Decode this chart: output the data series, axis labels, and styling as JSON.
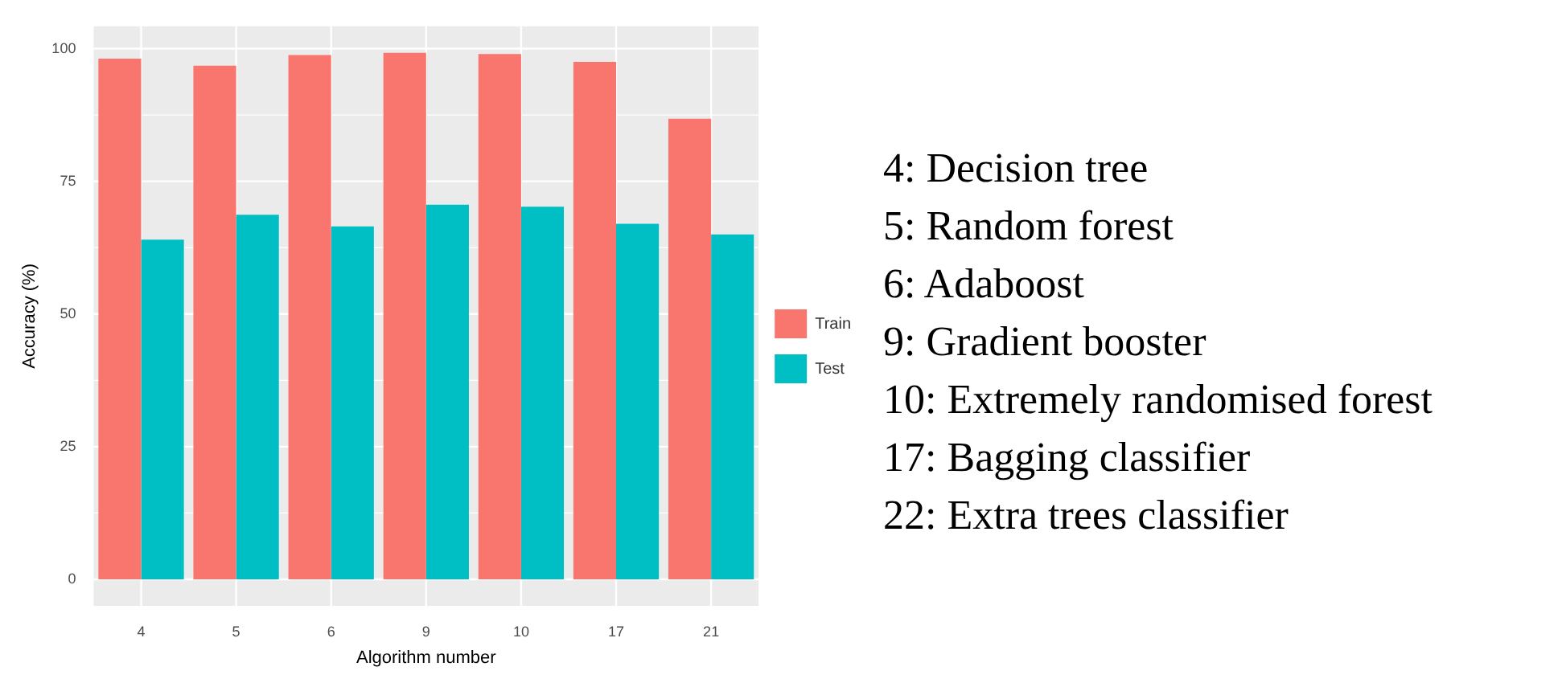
{
  "chart_data": {
    "type": "bar",
    "xlabel": "Algorithm number",
    "ylabel": "Accuracy (%)",
    "categories": [
      "4",
      "5",
      "6",
      "9",
      "10",
      "17",
      "21"
    ],
    "series": [
      {
        "name": "Train",
        "color": "#f8766d",
        "values": [
          98.1,
          96.8,
          98.8,
          99.2,
          99.0,
          97.5,
          86.8
        ]
      },
      {
        "name": "Test",
        "color": "#00bfc4",
        "values": [
          64.0,
          68.7,
          66.5,
          70.6,
          70.2,
          67.0,
          65.0
        ]
      }
    ],
    "ylim": [
      -5,
      104.2
    ],
    "yticks": [
      0,
      25,
      50,
      75,
      100
    ],
    "grid": true,
    "legend": "right",
    "annotations": [
      "4: Decision tree",
      "5: Random forest",
      "6: Adaboost",
      "9: Gradient booster",
      "10: Extremely randomised forest",
      "17: Bagging classifier",
      "22: Extra trees classifier"
    ]
  }
}
